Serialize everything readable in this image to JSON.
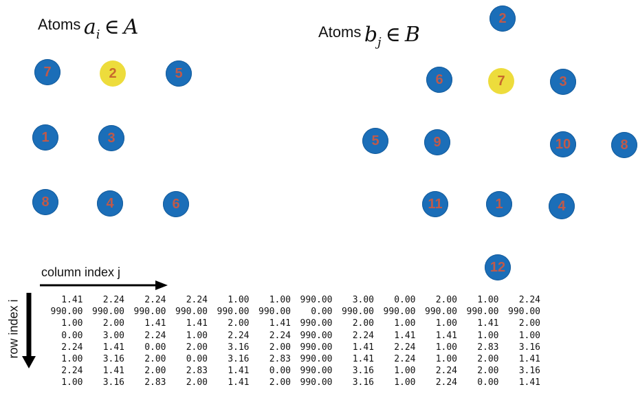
{
  "set_a": {
    "prefix": "Atoms",
    "math": {
      "base": "a",
      "sub": "i",
      "rel": "∈",
      "set": "A"
    },
    "atoms": [
      {
        "label": "7",
        "color": "blue"
      },
      {
        "label": "2",
        "color": "yellow"
      },
      {
        "label": "5",
        "color": "blue"
      },
      {
        "label": "1",
        "color": "blue"
      },
      {
        "label": "3",
        "color": "blue"
      },
      {
        "label": "8",
        "color": "blue"
      },
      {
        "label": "4",
        "color": "blue"
      },
      {
        "label": "6",
        "color": "blue"
      }
    ]
  },
  "set_b": {
    "prefix": "Atoms",
    "math": {
      "base": "b",
      "sub": "j",
      "rel": "∈",
      "set": "B"
    },
    "atoms": [
      {
        "label": "2",
        "color": "blue"
      },
      {
        "label": "6",
        "color": "blue"
      },
      {
        "label": "7",
        "color": "yellow"
      },
      {
        "label": "3",
        "color": "blue"
      },
      {
        "label": "5",
        "color": "blue"
      },
      {
        "label": "9",
        "color": "blue"
      },
      {
        "label": "10",
        "color": "blue"
      },
      {
        "label": "8",
        "color": "blue"
      },
      {
        "label": "11",
        "color": "blue"
      },
      {
        "label": "1",
        "color": "blue"
      },
      {
        "label": "4",
        "color": "blue"
      },
      {
        "label": "12",
        "color": "blue"
      }
    ]
  },
  "colors": {
    "blue": "#1b6eb8",
    "yellow": "#eddc3c",
    "label": "#c05a4a"
  },
  "column_label": "column index j",
  "row_label": "row index i",
  "matrix": [
    [
      "1.41",
      "2.24",
      "2.24",
      "2.24",
      "1.00",
      "1.00",
      "990.00",
      "3.00",
      "0.00",
      "2.00",
      "1.00",
      "2.24"
    ],
    [
      "990.00",
      "990.00",
      "990.00",
      "990.00",
      "990.00",
      "990.00",
      "0.00",
      "990.00",
      "990.00",
      "990.00",
      "990.00",
      "990.00"
    ],
    [
      "1.00",
      "2.00",
      "1.41",
      "1.41",
      "2.00",
      "1.41",
      "990.00",
      "2.00",
      "1.00",
      "1.00",
      "1.41",
      "2.00"
    ],
    [
      "0.00",
      "3.00",
      "2.24",
      "1.00",
      "2.24",
      "2.24",
      "990.00",
      "2.24",
      "1.41",
      "1.41",
      "1.00",
      "1.00"
    ],
    [
      "2.24",
      "1.41",
      "0.00",
      "2.00",
      "3.16",
      "2.00",
      "990.00",
      "1.41",
      "2.24",
      "1.00",
      "2.83",
      "3.16"
    ],
    [
      "1.00",
      "3.16",
      "2.00",
      "0.00",
      "3.16",
      "2.83",
      "990.00",
      "1.41",
      "2.24",
      "1.00",
      "2.00",
      "1.41"
    ],
    [
      "2.24",
      "1.41",
      "2.00",
      "2.83",
      "1.41",
      "0.00",
      "990.00",
      "3.16",
      "1.00",
      "2.24",
      "2.00",
      "3.16"
    ],
    [
      "1.00",
      "3.16",
      "2.83",
      "2.00",
      "1.41",
      "2.00",
      "990.00",
      "3.16",
      "1.00",
      "2.24",
      "0.00",
      "1.41"
    ]
  ]
}
